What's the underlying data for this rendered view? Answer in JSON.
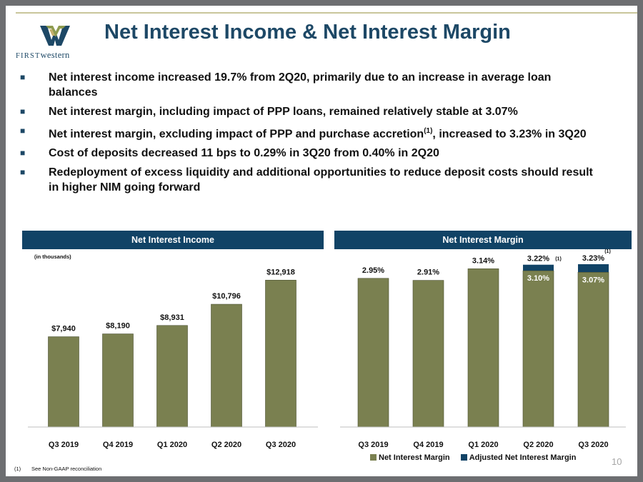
{
  "logo": {
    "prefix": "FIRST",
    "suffix": "western"
  },
  "title": "Net Interest Income & Net Interest Margin",
  "bullets": [
    "Net interest income increased 19.7% from 2Q20, primarily due to an increase in average loan balances",
    "Net interest margin, including impact of PPP loans, remained relatively stable at 3.07%",
    {
      "pre": "Net interest margin, excluding impact of PPP and purchase accretion",
      "sup": "(1)",
      "post": ", increased to 3.23% in 3Q20"
    },
    "Cost of deposits decreased 11 bps to 0.29% in 3Q20 from 0.40% in 2Q20",
    "Redeployment of excess liquidity and additional opportunities to reduce deposit costs should result in higher NIM going forward"
  ],
  "colors": {
    "bar": "#7a8050",
    "adjusted": "#114366",
    "header": "#114366",
    "title": "#1d4866"
  },
  "chart_data": [
    {
      "type": "bar",
      "title": "Net Interest Income",
      "units_note": "(in thousands)",
      "categories": [
        "Q3 2019",
        "Q4 2019",
        "Q1 2020",
        "Q2 2020",
        "Q3 2020"
      ],
      "values": [
        7940,
        8190,
        8931,
        10796,
        12918
      ],
      "labels": [
        "$7,940",
        "$8,190",
        "$8,931",
        "$10,796",
        "$12,918"
      ],
      "ylim": [
        0,
        13500
      ]
    },
    {
      "type": "bar",
      "title": "Net Interest Margin",
      "categories": [
        "Q3 2019",
        "Q4 2019",
        "Q1 2020",
        "Q2 2020",
        "Q3 2020"
      ],
      "series": [
        {
          "name": "Net Interest Margin",
          "values": [
            2.95,
            2.91,
            3.14,
            3.1,
            3.07
          ],
          "labels": [
            "2.95%",
            "2.91%",
            "3.14%",
            "3.10%",
            "3.07%"
          ]
        },
        {
          "name": "Adjusted Net Interest Margin",
          "values": [
            null,
            null,
            null,
            3.22,
            3.23
          ],
          "labels": [
            "",
            "",
            "",
            "3.22%",
            "3.23%"
          ],
          "footnote_marker": "(1)"
        }
      ],
      "ylim": [
        0,
        3.4
      ]
    }
  ],
  "footnote": {
    "marker": "(1)",
    "text": "See Non-GAAP reconciliation"
  },
  "page_number": "10"
}
